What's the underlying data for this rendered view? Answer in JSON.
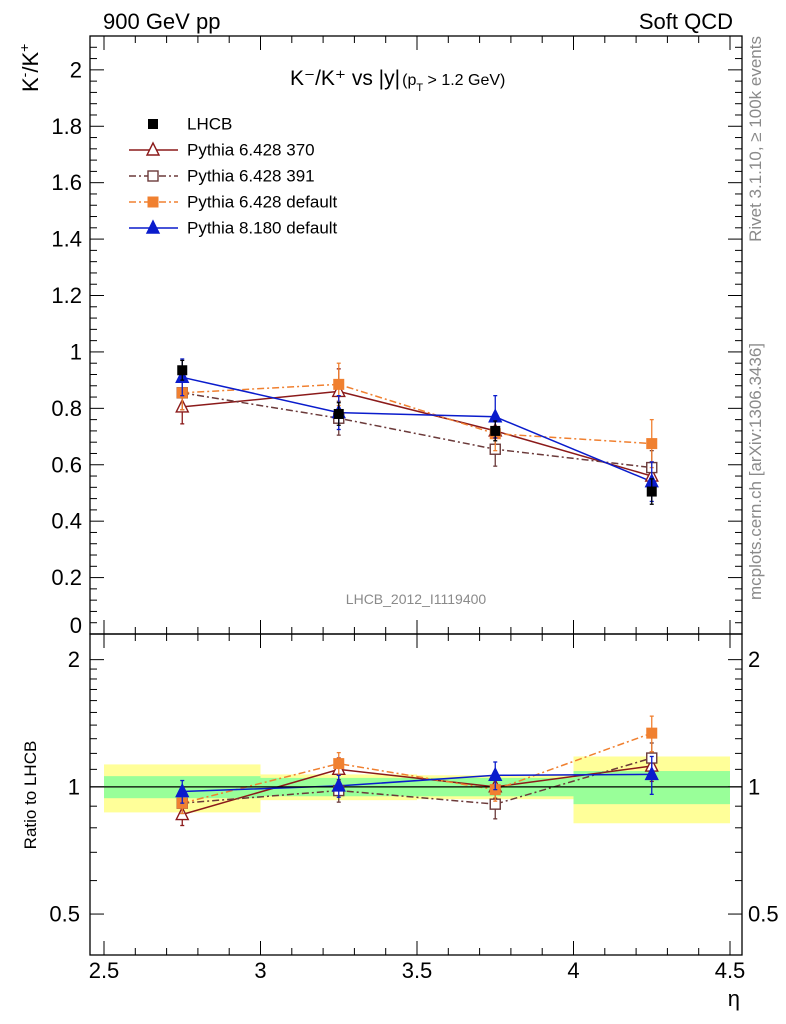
{
  "header": {
    "left": "900 GeV pp",
    "right": "Soft QCD"
  },
  "side_labels": {
    "rivet": "Rivet 3.1.10, ≥ 100k events",
    "mcplots": "mcplots.cern.ch [arXiv:1306.3436]"
  },
  "chart_data": {
    "type": "scatter",
    "title": {
      "main": "K⁻/K⁺ vs |y|",
      "sub_open": "(p",
      "sub_T": "T",
      "sub_close": " > 1.2 GeV)"
    },
    "ylabel": {
      "base": "K",
      "sup1": "-",
      "mid": "/K",
      "sup2": "+"
    },
    "xlabel": "η",
    "ratio_ylabel": "Ratio to LHCB",
    "watermark": "LHCB_2012_I1119400",
    "xlim": [
      2.5,
      4.5
    ],
    "ylim": [
      0,
      2.12
    ],
    "ratio_ylim": [
      0.4,
      2.3
    ],
    "ratio_scale": "log",
    "x_ticks": [
      "2.5",
      "3",
      "3.5",
      "4",
      "4.5"
    ],
    "y_ticks": [
      "0.2",
      "0.4",
      "0.6",
      "0.8",
      "1",
      "1.2",
      "1.4",
      "1.6",
      "1.8",
      "2"
    ],
    "y_tick_zero": "0",
    "ratio_ticks": [
      "0.5",
      "1",
      "2"
    ],
    "bins": [
      [
        2.5,
        3.0
      ],
      [
        3.0,
        3.5
      ],
      [
        3.5,
        4.0
      ],
      [
        4.0,
        4.5
      ]
    ],
    "x": [
      2.75,
      3.25,
      3.75,
      4.25
    ],
    "data": {
      "name": "LHCB",
      "values": [
        0.935,
        0.78,
        0.72,
        0.505
      ],
      "errors": [
        0.035,
        0.04,
        0.035,
        0.045
      ],
      "ratio_band_inner": [
        0.06,
        0.05,
        0.05,
        0.09
      ],
      "ratio_band_outer": [
        0.13,
        0.07,
        0.065,
        0.18
      ]
    },
    "legend_position": "top-left",
    "series": [
      {
        "name": "Pythia 6.428 370",
        "color": "#8b1a1a",
        "marker": "open-triangle",
        "dash": "",
        "values": [
          0.805,
          0.86,
          0.72,
          0.56
        ],
        "errors": [
          0.06,
          0.08,
          0.06,
          0.05
        ],
        "ratio": [
          0.86,
          1.1,
          1.0,
          1.12
        ],
        "ratio_errors": [
          0.05,
          0.07,
          0.06,
          0.09
        ]
      },
      {
        "name": "Pythia 6.428 391",
        "color": "#6b3a3a",
        "marker": "open-square",
        "dash": "7,3,2,3",
        "values": [
          0.855,
          0.765,
          0.655,
          0.59
        ],
        "errors": [
          0.06,
          0.06,
          0.06,
          0.06
        ],
        "ratio": [
          0.915,
          0.98,
          0.91,
          1.17
        ],
        "ratio_errors": [
          0.05,
          0.06,
          0.07,
          0.1
        ]
      },
      {
        "name": "Pythia 6.428 default",
        "color": "#f08030",
        "marker": "filled-square",
        "dash": "7,3,2,3",
        "values": [
          0.855,
          0.885,
          0.71,
          0.675
        ],
        "errors": [
          0.06,
          0.075,
          0.06,
          0.085
        ],
        "ratio": [
          0.915,
          1.135,
          0.985,
          1.34
        ],
        "ratio_errors": [
          0.05,
          0.07,
          0.06,
          0.13
        ]
      },
      {
        "name": "Pythia 8.180 default",
        "color": "#0a1ccc",
        "marker": "filled-triangle",
        "dash": "",
        "values": [
          0.91,
          0.785,
          0.77,
          0.54
        ],
        "errors": [
          0.065,
          0.06,
          0.075,
          0.07
        ],
        "ratio": [
          0.975,
          1.005,
          1.065,
          1.07
        ],
        "ratio_errors": [
          0.06,
          0.06,
          0.08,
          0.11
        ]
      }
    ],
    "colors": {
      "band_inner": "#99ff99",
      "band_outer": "#ffff99",
      "data_marker": "#000000"
    }
  }
}
